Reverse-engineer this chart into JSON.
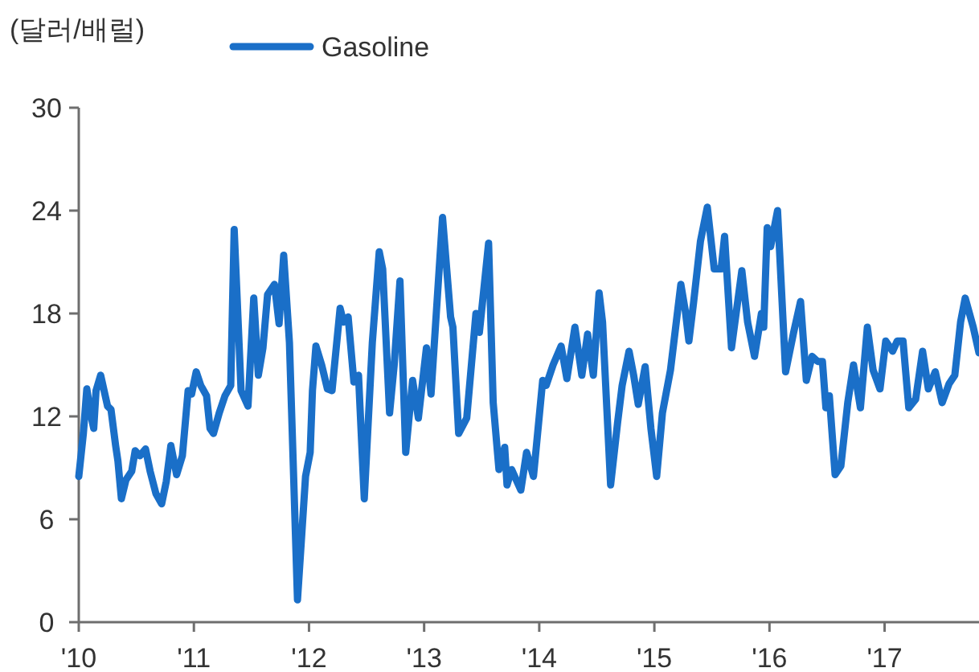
{
  "chart_data": {
    "type": "line",
    "ylabel": "(달러/배럴)",
    "legend": "top",
    "line_style": "solid",
    "xlim": [
      2010,
      2017.82
    ],
    "xticks": [
      {
        "value": 2010,
        "label": "'10"
      },
      {
        "value": 2011,
        "label": "'11"
      },
      {
        "value": 2012,
        "label": "'12"
      },
      {
        "value": 2013,
        "label": "'13"
      },
      {
        "value": 2014,
        "label": "'14"
      },
      {
        "value": 2015,
        "label": "'15"
      },
      {
        "value": 2016,
        "label": "'16"
      },
      {
        "value": 2017,
        "label": "'17"
      }
    ],
    "ylim": [
      0,
      30
    ],
    "yticks": [
      0,
      6,
      12,
      18,
      24,
      30
    ],
    "series": [
      {
        "name": "Gasoline",
        "color": "#1a6fc8",
        "x": [
          2010.0,
          2010.04,
          2010.07,
          2010.11,
          2010.13,
          2010.15,
          2010.19,
          2010.25,
          2010.28,
          2010.32,
          2010.34,
          2010.37,
          2010.41,
          2010.46,
          2010.49,
          2010.53,
          2010.58,
          2010.62,
          2010.67,
          2010.72,
          2010.76,
          2010.8,
          2010.85,
          2010.9,
          2010.95,
          2010.98,
          2011.02,
          2011.06,
          2011.11,
          2011.14,
          2011.17,
          2011.22,
          2011.27,
          2011.32,
          2011.35,
          2011.41,
          2011.47,
          2011.52,
          2011.56,
          2011.6,
          2011.64,
          2011.7,
          2011.74,
          2011.78,
          2011.83,
          2011.9,
          2011.97,
          2012.01,
          2012.03,
          2012.06,
          2012.11,
          2012.16,
          2012.2,
          2012.27,
          2012.3,
          2012.34,
          2012.39,
          2012.43,
          2012.48,
          2012.55,
          2012.61,
          2012.64,
          2012.7,
          2012.74,
          2012.79,
          2012.84,
          2012.9,
          2012.95,
          2013.02,
          2013.06,
          2013.16,
          2013.23,
          2013.25,
          2013.3,
          2013.37,
          2013.45,
          2013.48,
          2013.56,
          2013.6,
          2013.65,
          2013.7,
          2013.72,
          2013.76,
          2013.84,
          2013.89,
          2013.95,
          2014.03,
          2014.06,
          2014.12,
          2014.19,
          2014.24,
          2014.31,
          2014.37,
          2014.42,
          2014.47,
          2014.52,
          2014.55,
          2014.62,
          2014.68,
          2014.72,
          2014.78,
          2014.82,
          2014.86,
          2014.92,
          2014.97,
          2015.02,
          2015.07,
          2015.14,
          2015.23,
          2015.27,
          2015.3,
          2015.34,
          2015.4,
          2015.46,
          2015.52,
          2015.58,
          2015.61,
          2015.67,
          2015.76,
          2015.81,
          2015.87,
          2015.93,
          2015.95,
          2015.98,
          2016.01,
          2016.07,
          2016.14,
          2016.21,
          2016.27,
          2016.32,
          2016.37,
          2016.42,
          2016.46,
          2016.49,
          2016.52,
          2016.57,
          2016.62,
          2016.68,
          2016.73,
          2016.79,
          2016.85,
          2016.9,
          2016.96,
          2017.01,
          2017.07,
          2017.11,
          2017.16,
          2017.21,
          2017.27,
          2017.33,
          2017.38,
          2017.44,
          2017.5,
          2017.56,
          2017.61,
          2017.66,
          2017.7,
          2017.77,
          2017.82
        ],
        "values": [
          8.5,
          11.0,
          13.6,
          11.9,
          11.3,
          13.5,
          14.4,
          12.6,
          12.4,
          10.3,
          9.4,
          7.2,
          8.3,
          8.8,
          10.0,
          9.7,
          10.1,
          8.8,
          7.5,
          6.9,
          8.2,
          10.3,
          8.6,
          9.7,
          13.5,
          13.3,
          14.6,
          13.8,
          13.2,
          11.3,
          11.0,
          12.2,
          13.2,
          13.8,
          22.9,
          13.5,
          12.6,
          18.9,
          14.4,
          16.0,
          19.1,
          19.7,
          17.4,
          21.4,
          16.3,
          1.3,
          8.5,
          9.9,
          13.5,
          16.1,
          15.0,
          13.6,
          13.5,
          18.3,
          17.5,
          17.8,
          14.0,
          14.4,
          7.2,
          16.3,
          21.6,
          20.6,
          12.2,
          15.0,
          19.9,
          9.9,
          14.1,
          11.9,
          16.0,
          13.3,
          23.6,
          17.8,
          17.2,
          11.0,
          11.9,
          18.0,
          16.9,
          22.1,
          12.8,
          8.9,
          10.2,
          8.0,
          8.9,
          7.7,
          9.9,
          8.5,
          14.1,
          13.8,
          15.0,
          16.1,
          14.2,
          17.2,
          14.4,
          16.8,
          14.4,
          19.2,
          17.5,
          8.0,
          11.6,
          13.8,
          15.8,
          14.4,
          12.7,
          14.9,
          11.3,
          8.5,
          12.2,
          14.7,
          19.7,
          18.1,
          16.4,
          18.6,
          22.2,
          24.2,
          20.6,
          20.6,
          22.5,
          16.0,
          20.5,
          17.5,
          15.5,
          18.0,
          17.2,
          23.0,
          21.9,
          24.0,
          14.6,
          16.9,
          18.7,
          14.1,
          15.5,
          15.2,
          15.2,
          12.5,
          13.2,
          8.6,
          9.1,
          12.8,
          15.0,
          12.5,
          17.2,
          14.7,
          13.6,
          16.4,
          15.8,
          16.4,
          16.4,
          12.5,
          13.0,
          15.8,
          13.6,
          14.6,
          12.8,
          13.9,
          14.4,
          17.5,
          18.9,
          17.2,
          15.7
        ]
      }
    ]
  }
}
